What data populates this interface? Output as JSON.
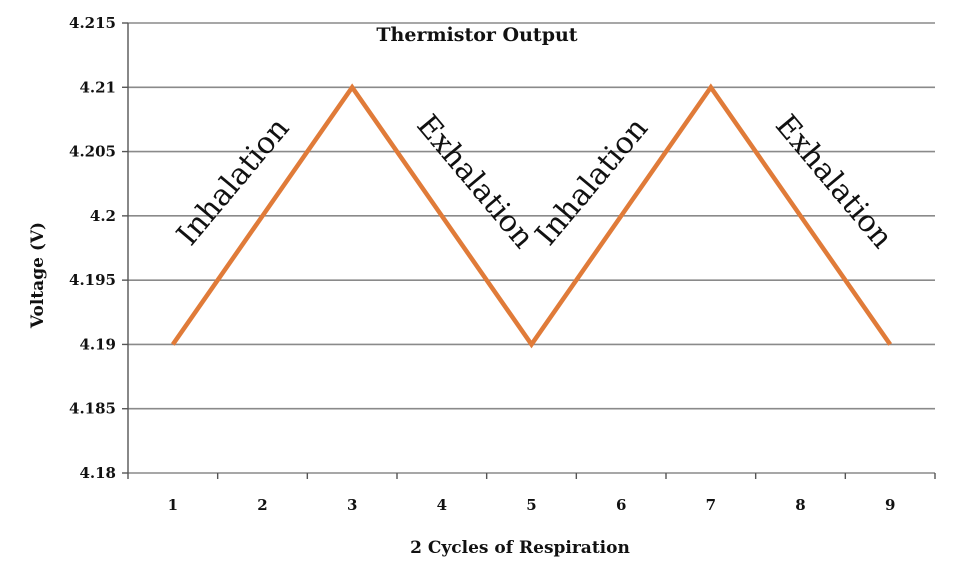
{
  "chart_data": {
    "type": "line",
    "title": "Thermistor Output",
    "xlabel": "2 Cycles of Respiration",
    "ylabel": "Voltage (V)",
    "x": [
      1,
      2,
      3,
      4,
      5,
      6,
      7,
      8,
      9
    ],
    "series": [
      {
        "values": [
          4.19,
          4.2,
          4.21,
          4.2,
          4.19,
          4.2,
          4.21,
          4.2,
          4.19
        ],
        "color": "#e07b39"
      }
    ],
    "ylim": [
      4.18,
      4.215
    ],
    "yticks": [
      4.18,
      4.185,
      4.19,
      4.195,
      4.2,
      4.205,
      4.21,
      4.215
    ],
    "ytick_labels": [
      "4.18",
      "4.185",
      "4.19",
      "4.195",
      "4.2",
      "4.205",
      "4.21",
      "4.215"
    ],
    "grid": true,
    "annotations": [
      {
        "text": "Inhalation",
        "x": 2,
        "y": 4.2
      },
      {
        "text": "Exhalation",
        "x": 4,
        "y": 4.2
      },
      {
        "text": "Inhalation",
        "x": 6,
        "y": 4.2
      },
      {
        "text": "Exhalation",
        "x": 8,
        "y": 4.2
      }
    ]
  }
}
